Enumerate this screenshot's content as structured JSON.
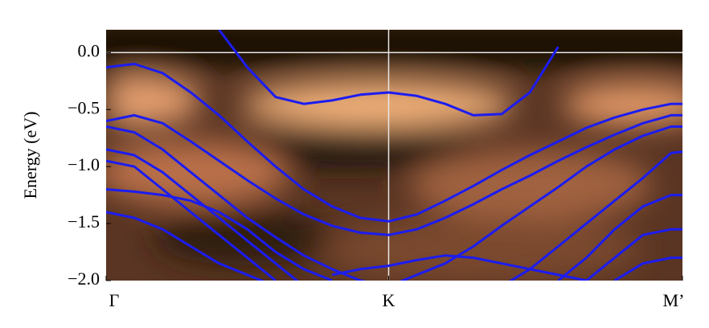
{
  "chart_data": {
    "type": "line",
    "ylabel": "Energy (eV)",
    "color": "#1c1cf0",
    "x": [
      0,
      0.1,
      0.2,
      0.3,
      0.4,
      0.5,
      0.6,
      0.7,
      0.8,
      0.9,
      1.0,
      1.1,
      1.2,
      1.3,
      1.4,
      1.5,
      1.6,
      1.7,
      1.8,
      1.9,
      2.0,
      2.04
    ],
    "xlim": [
      0,
      2.04
    ],
    "xticks": [
      {
        "value": 0,
        "label": "Γ"
      },
      {
        "value": 1.0,
        "label": "K"
      },
      {
        "value": 2.04,
        "label": "M’"
      }
    ],
    "ylim": [
      -2.0,
      0.2
    ],
    "yticks": [
      {
        "value": 0.0,
        "label": "0.0"
      },
      {
        "value": -0.5,
        "label": "−0.5"
      },
      {
        "value": -1.0,
        "label": "−1.0"
      },
      {
        "value": -1.5,
        "label": "−1.5"
      },
      {
        "value": -2.0,
        "label": "−2.0"
      }
    ],
    "hline": 0,
    "vline": 1.0,
    "series": [
      {
        "values": [
          null,
          null,
          null,
          null,
          0.2,
          -0.13,
          -0.39,
          -0.45,
          -0.42,
          -0.37,
          -0.35,
          -0.38,
          -0.45,
          -0.55,
          -0.54,
          -0.35,
          0.05,
          null,
          null,
          null,
          null,
          null
        ]
      },
      {
        "values": [
          -0.13,
          -0.1,
          -0.18,
          -0.35,
          -0.55,
          -0.78,
          -1.0,
          -1.2,
          -1.35,
          -1.45,
          -1.48,
          -1.42,
          -1.3,
          -1.17,
          -1.03,
          -0.9,
          -0.78,
          -0.66,
          -0.57,
          -0.5,
          -0.45,
          -0.45
        ]
      },
      {
        "values": [
          -0.6,
          -0.55,
          -0.62,
          -0.78,
          -0.95,
          -1.12,
          -1.28,
          -1.42,
          -1.52,
          -1.58,
          -1.6,
          -1.55,
          -1.45,
          -1.33,
          -1.2,
          -1.08,
          -0.95,
          -0.83,
          -0.72,
          -0.62,
          -0.55,
          -0.55
        ]
      },
      {
        "values": [
          -0.65,
          -0.7,
          -0.85,
          -1.05,
          -1.25,
          -1.45,
          -1.62,
          -1.78,
          -1.9,
          -2.0,
          -2.05,
          -1.95,
          -1.85,
          -1.7,
          -1.52,
          -1.35,
          -1.18,
          -1.0,
          -0.85,
          -0.73,
          -0.65,
          -0.65
        ]
      },
      {
        "values": [
          -0.85,
          -0.9,
          -1.05,
          -1.25,
          -1.45,
          -1.65,
          -1.85,
          -2.05,
          null,
          null,
          null,
          null,
          null,
          null,
          -2.05,
          -1.9,
          -1.7,
          -1.5,
          -1.3,
          -1.1,
          -0.88,
          -0.87
        ]
      },
      {
        "values": [
          -0.95,
          -1.0,
          -1.2,
          -1.4,
          -1.6,
          -1.8,
          -2.0,
          null,
          null,
          null,
          null,
          null,
          null,
          null,
          null,
          null,
          -2.0,
          -1.8,
          -1.55,
          -1.35,
          -1.25,
          -1.25
        ]
      },
      {
        "values": [
          -1.2,
          -1.22,
          -1.25,
          -1.3,
          -1.4,
          -1.55,
          -1.75,
          -1.9,
          -2.0,
          null,
          null,
          null,
          null,
          null,
          null,
          null,
          null,
          -2.0,
          -1.8,
          -1.6,
          -1.55,
          -1.55
        ]
      },
      {
        "values": [
          -1.4,
          -1.45,
          -1.55,
          -1.7,
          -1.85,
          -1.95,
          -2.05,
          null,
          null,
          null,
          null,
          null,
          null,
          null,
          null,
          null,
          null,
          null,
          -2.0,
          -1.85,
          -1.8,
          -1.8
        ]
      },
      {
        "values": [
          null,
          null,
          null,
          null,
          null,
          null,
          null,
          null,
          -1.95,
          -1.9,
          -1.87,
          -1.82,
          -1.78,
          -1.8,
          -1.85,
          -1.9,
          -1.95,
          -2.0,
          null,
          null,
          null,
          null
        ]
      }
    ]
  }
}
